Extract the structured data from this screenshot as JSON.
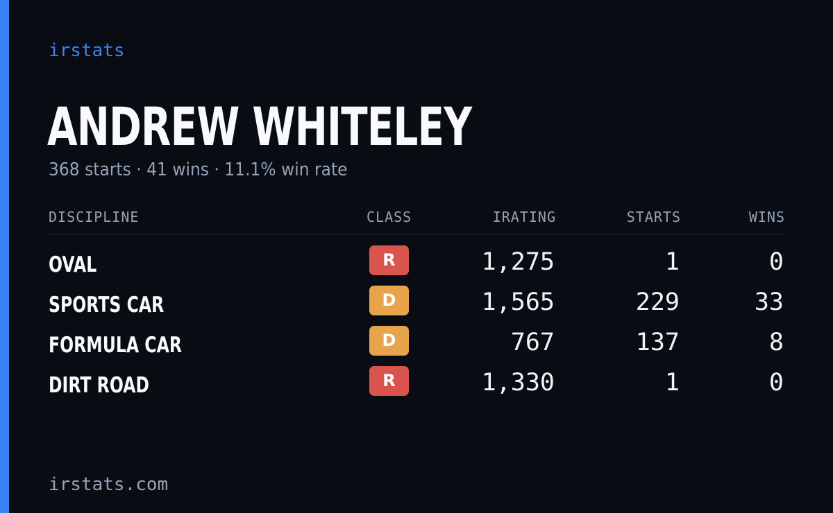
{
  "brand": "irstats",
  "driver": {
    "name": "ANDREW WHITELEY",
    "summary": "368 starts · 41 wins · 11.1% win rate"
  },
  "table": {
    "headers": {
      "discipline": "DISCIPLINE",
      "class": "CLASS",
      "irating": "IRATING",
      "starts": "STARTS",
      "wins": "WINS"
    },
    "rows": [
      {
        "discipline": "OVAL",
        "class": "R",
        "irating": "1,275",
        "starts": "1",
        "wins": "0"
      },
      {
        "discipline": "SPORTS CAR",
        "class": "D",
        "irating": "1,565",
        "starts": "229",
        "wins": "33"
      },
      {
        "discipline": "FORMULA CAR",
        "class": "D",
        "irating": "767",
        "starts": "137",
        "wins": "8"
      },
      {
        "discipline": "DIRT ROAD",
        "class": "R",
        "irating": "1,330",
        "starts": "1",
        "wins": "0"
      }
    ]
  },
  "footer": "irstats.com",
  "colors": {
    "background": "#0a0c13",
    "accent": "#3b82f6",
    "class_r": "#d9534f",
    "class_d": "#e8a44a"
  }
}
